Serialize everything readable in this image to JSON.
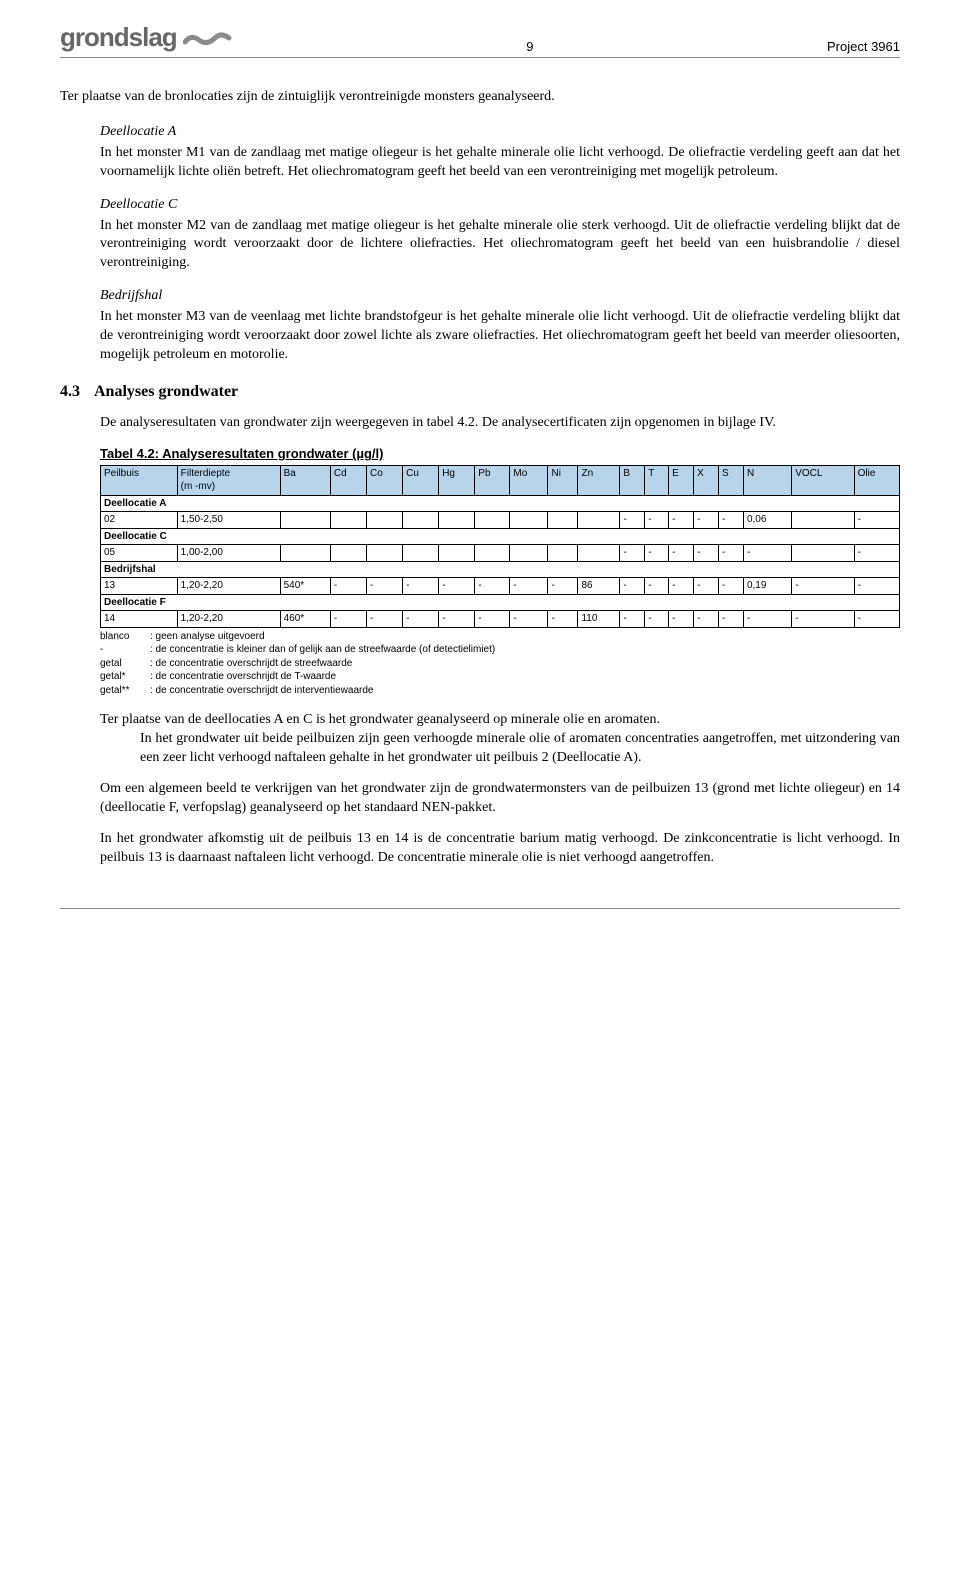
{
  "header": {
    "logo": "grondslag",
    "pageNumber": "9",
    "project": "Project 3961"
  },
  "intro": "Ter plaatse van de bronlocaties zijn de zintuiglijk verontreinigde monsters geanalyseerd.",
  "blocks": [
    {
      "title": "Deellocatie A",
      "body": "In het monster M1 van de zandlaag met matige oliegeur is het gehalte minerale olie licht verhoogd. De oliefractie verdeling geeft aan dat het voornamelijk lichte oliën betreft. Het oliechromatogram geeft het beeld van een verontreiniging met mogelijk petroleum."
    },
    {
      "title": "Deellocatie C",
      "body": "In het monster M2 van de zandlaag met matige oliegeur is het gehalte minerale olie sterk verhoogd. Uit de oliefractie verdeling blijkt dat de verontreiniging wordt veroorzaakt door de lichtere oliefracties. Het oliechromatogram geeft het beeld van een huisbrandolie / diesel verontreiniging."
    },
    {
      "title": "Bedrijfshal",
      "body": "In het monster M3 van de veenlaag met lichte brandstofgeur is het gehalte minerale olie licht verhoogd. Uit de oliefractie verdeling blijkt dat de verontreiniging wordt veroorzaakt door zowel lichte als zware oliefracties. Het oliechromatogram geeft het beeld van meerder oliesoorten, mogelijk petroleum en motorolie."
    }
  ],
  "h3": {
    "num": "4.3",
    "title": "Analyses grondwater"
  },
  "afterH3": "De analyseresultaten van grondwater zijn weergegeven in tabel 4.2. De analysecertificaten zijn opgenomen in bijlage IV.",
  "table": {
    "caption": "Tabel 4.2: Analyseresultaten grondwater (µg/l)",
    "headers": [
      "Peilbuis",
      "Filterdiepte (m -mv)",
      "Ba",
      "Cd",
      "Co",
      "Cu",
      "Hg",
      "Pb",
      "Mo",
      "Ni",
      "Zn",
      "B",
      "T",
      "E",
      "X",
      "S",
      "N",
      "VOCL",
      "Olie"
    ],
    "headerBg": "#b8d4ea",
    "groups": [
      {
        "label": "Deellocatie A",
        "rows": [
          [
            "02",
            "1,50-2,50",
            "",
            "",
            "",
            "",
            "",
            "",
            "",
            "",
            "",
            "-",
            "-",
            "-",
            "-",
            "-",
            "0,06",
            "",
            "-"
          ]
        ]
      },
      {
        "label": "Deellocatie C",
        "rows": [
          [
            "05",
            "1,00-2,00",
            "",
            "",
            "",
            "",
            "",
            "",
            "",
            "",
            "",
            "-",
            "-",
            "-",
            "-",
            "-",
            "-",
            "",
            "-"
          ]
        ]
      },
      {
        "label": "Bedrijfshal",
        "rows": [
          [
            "13",
            "1,20-2,20",
            "540*",
            "-",
            "-",
            "-",
            "-",
            "-",
            "-",
            "-",
            "86",
            "-",
            "-",
            "-",
            "-",
            "-",
            "0,19",
            "-",
            "-"
          ]
        ]
      },
      {
        "label": "Deellocatie F",
        "rows": [
          [
            "14",
            "1,20-2,20",
            "460*",
            "-",
            "-",
            "-",
            "-",
            "-",
            "-",
            "-",
            "110",
            "-",
            "-",
            "-",
            "-",
            "-",
            "-",
            "-",
            "-"
          ]
        ]
      }
    ]
  },
  "legend": [
    {
      "key": "blanco",
      "text": ": geen analyse uitgevoerd"
    },
    {
      "key": "-",
      "text": ": de concentratie is kleiner dan of gelijk aan de streefwaarde (of detectielimiet)"
    },
    {
      "key": "getal",
      "text": ": de concentratie overschrijdt de streefwaarde"
    },
    {
      "key": "getal*",
      "text": ": de concentratie overschrijdt de T-waarde"
    },
    {
      "key": "getal**",
      "text": ": de concentratie overschrijdt de interventiewaarde"
    }
  ],
  "p1a": "Ter plaatse van de deellocaties A en C is het grondwater geanalyseerd op minerale olie en aromaten.",
  "p1b": "In het grondwater uit beide peilbuizen zijn geen verhoogde minerale olie of aromaten concentraties aangetroffen, met uitzondering van een zeer licht verhoogd naftaleen gehalte in het grondwater uit peilbuis 2 (Deellocatie A).",
  "p2": "Om een algemeen beeld te verkrijgen van het grondwater zijn de grondwatermonsters van de peilbuizen 13 (grond met lichte oliegeur) en 14 (deellocatie F, verfopslag) geanalyseerd op het standaard NEN-pakket.",
  "p3": "In het grondwater afkomstig uit de peilbuis 13 en 14 is de concentratie barium matig verhoogd. De zinkconcentratie is licht verhoogd. In peilbuis 13 is daarnaast naftaleen licht verhoogd. De concentratie minerale olie is niet verhoogd aangetroffen."
}
